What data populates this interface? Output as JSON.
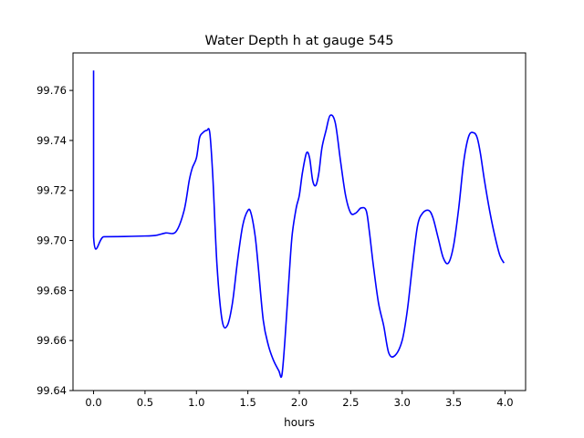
{
  "chart_data": {
    "type": "line",
    "title": "Water Depth h at gauge 545",
    "xlabel": "hours",
    "ylabel": "",
    "xlim": [
      -0.2,
      4.2
    ],
    "ylim": [
      99.64,
      99.775
    ],
    "xticks": [
      0.0,
      0.5,
      1.0,
      1.5,
      2.0,
      2.5,
      3.0,
      3.5,
      4.0
    ],
    "xtick_labels": [
      "0.0",
      "0.5",
      "1.0",
      "1.5",
      "2.0",
      "2.5",
      "3.0",
      "3.5",
      "4.0"
    ],
    "yticks": [
      99.64,
      99.66,
      99.68,
      99.7,
      99.72,
      99.74,
      99.76
    ],
    "ytick_labels": [
      "99.64",
      "99.66",
      "99.68",
      "99.70",
      "99.72",
      "99.74",
      "99.76"
    ],
    "grid": false,
    "legend": "none",
    "series": [
      {
        "color": "#0000ff",
        "x": [
          0.0,
          0.0,
          0.1,
          0.3,
          0.5,
          0.6,
          0.7,
          0.8,
          0.88,
          0.93,
          0.96,
          1.0,
          1.03,
          1.06,
          1.1,
          1.13,
          1.16,
          1.2,
          1.25,
          1.3,
          1.35,
          1.4,
          1.45,
          1.5,
          1.53,
          1.57,
          1.6,
          1.65,
          1.7,
          1.75,
          1.8,
          1.83,
          1.86,
          1.9,
          1.93,
          1.97,
          2.0,
          2.03,
          2.07,
          2.1,
          2.13,
          2.16,
          2.19,
          2.22,
          2.26,
          2.3,
          2.35,
          2.4,
          2.45,
          2.5,
          2.55,
          2.6,
          2.65,
          2.68,
          2.72,
          2.77,
          2.82,
          2.87,
          2.93,
          3.0,
          3.05,
          3.1,
          3.15,
          3.2,
          3.26,
          3.3,
          3.35,
          3.4,
          3.45,
          3.5,
          3.55,
          3.6,
          3.65,
          3.7,
          3.73,
          3.76,
          3.8,
          3.85,
          3.9,
          3.95,
          3.99
        ],
        "values": [
          99.768,
          99.7015,
          99.7015,
          99.7016,
          99.7018,
          99.702,
          99.703,
          99.7035,
          99.712,
          99.724,
          99.729,
          99.733,
          99.741,
          99.743,
          99.744,
          99.743,
          99.725,
          99.69,
          99.668,
          99.666,
          99.675,
          99.692,
          99.706,
          99.712,
          99.711,
          99.702,
          99.69,
          99.668,
          99.658,
          99.652,
          99.648,
          99.646,
          99.66,
          99.685,
          99.702,
          99.713,
          99.718,
          99.727,
          99.735,
          99.733,
          99.724,
          99.722,
          99.727,
          99.737,
          99.744,
          99.75,
          99.747,
          99.732,
          99.718,
          99.711,
          99.711,
          99.713,
          99.712,
          99.704,
          99.69,
          99.675,
          99.666,
          99.655,
          99.654,
          99.66,
          99.672,
          99.69,
          99.706,
          99.711,
          99.712,
          99.709,
          99.701,
          99.693,
          99.691,
          99.698,
          99.713,
          99.732,
          99.742,
          99.743,
          99.741,
          99.735,
          99.724,
          99.712,
          99.702,
          99.694,
          99.691
        ]
      }
    ]
  }
}
